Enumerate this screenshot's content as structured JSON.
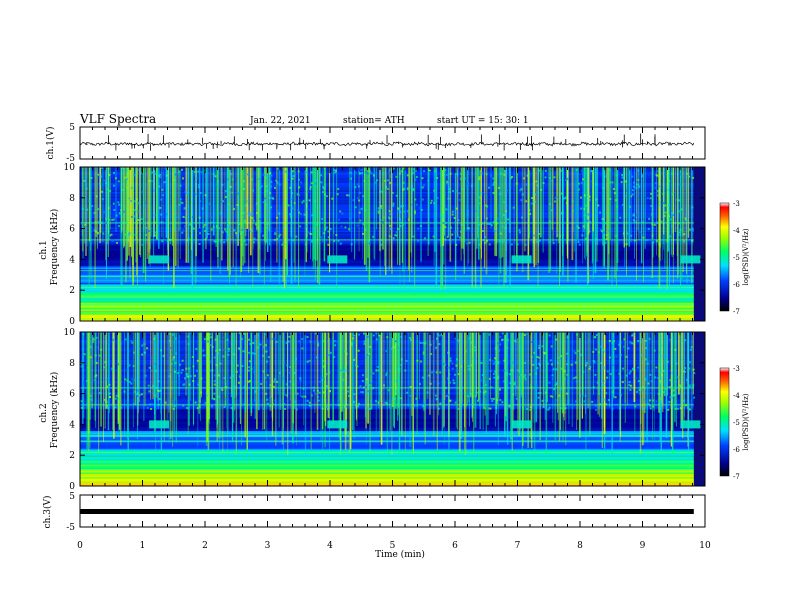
{
  "header": {
    "title": "VLF Spectra",
    "date": "Jan. 22, 2021",
    "station": "station= ATH",
    "start_ut": "start UT =  15: 30: 1"
  },
  "chart_data": [
    {
      "type": "line",
      "name": "waveform-ch1",
      "ylabel": "ch.1(V)",
      "ylim": [
        -5,
        5
      ],
      "yticks": [
        "5",
        "-5"
      ],
      "xlim": [
        0,
        10
      ],
      "description_level": -0.3
    },
    {
      "type": "heatmap",
      "name": "spectrogram-ch1",
      "ylabel": "ch.1 Frequency (kHz)",
      "ylim": [
        0,
        10
      ],
      "yticks": [
        "0",
        "2",
        "4",
        "6",
        "8",
        "10"
      ],
      "xlim": [
        0,
        10
      ],
      "colorbar": {
        "label": "log(PSD)(V²/Hz)",
        "range": [
          -7,
          -3
        ],
        "ticks": [
          "-3",
          "-4",
          "-5",
          "-6",
          "-7"
        ]
      },
      "bursts_min": [
        1.25,
        4.1,
        7.05,
        9.75
      ],
      "burst_freq_khz": 4
    },
    {
      "type": "heatmap",
      "name": "spectrogram-ch2",
      "ylabel": "ch.2 Frequency (kHz)",
      "ylim": [
        0,
        10
      ],
      "yticks": [
        "0",
        "2",
        "4",
        "6",
        "8",
        "10"
      ],
      "xlim": [
        0,
        10
      ],
      "colorbar": {
        "label": "log(PSD)(V²/Hz)",
        "range": [
          -7,
          -3
        ],
        "ticks": [
          "-3",
          "-4",
          "-5",
          "-6",
          "-7"
        ]
      },
      "bursts_min": [
        1.25,
        4.1,
        7.05,
        9.75
      ],
      "burst_freq_khz": 4
    },
    {
      "type": "line",
      "name": "waveform-ch3",
      "ylabel": "ch.3(V)",
      "ylim": [
        -5,
        5
      ],
      "yticks": [
        "5",
        "-5"
      ],
      "xlim": [
        0,
        10
      ],
      "level": -0.4
    }
  ],
  "xaxis": {
    "label": "Time (min)",
    "ticks": [
      "0",
      "1",
      "2",
      "3",
      "4",
      "5",
      "6",
      "7",
      "8",
      "9",
      "10"
    ],
    "data_end": 9.82
  },
  "colors": {
    "spectro_bg": "#0a0a7a",
    "colormap": [
      "#000080",
      "#0000ff",
      "#0080ff",
      "#00ffff",
      "#00ff80",
      "#80ff00",
      "#ffff00",
      "#ff8000",
      "#ff0000",
      "#ffffff"
    ]
  }
}
